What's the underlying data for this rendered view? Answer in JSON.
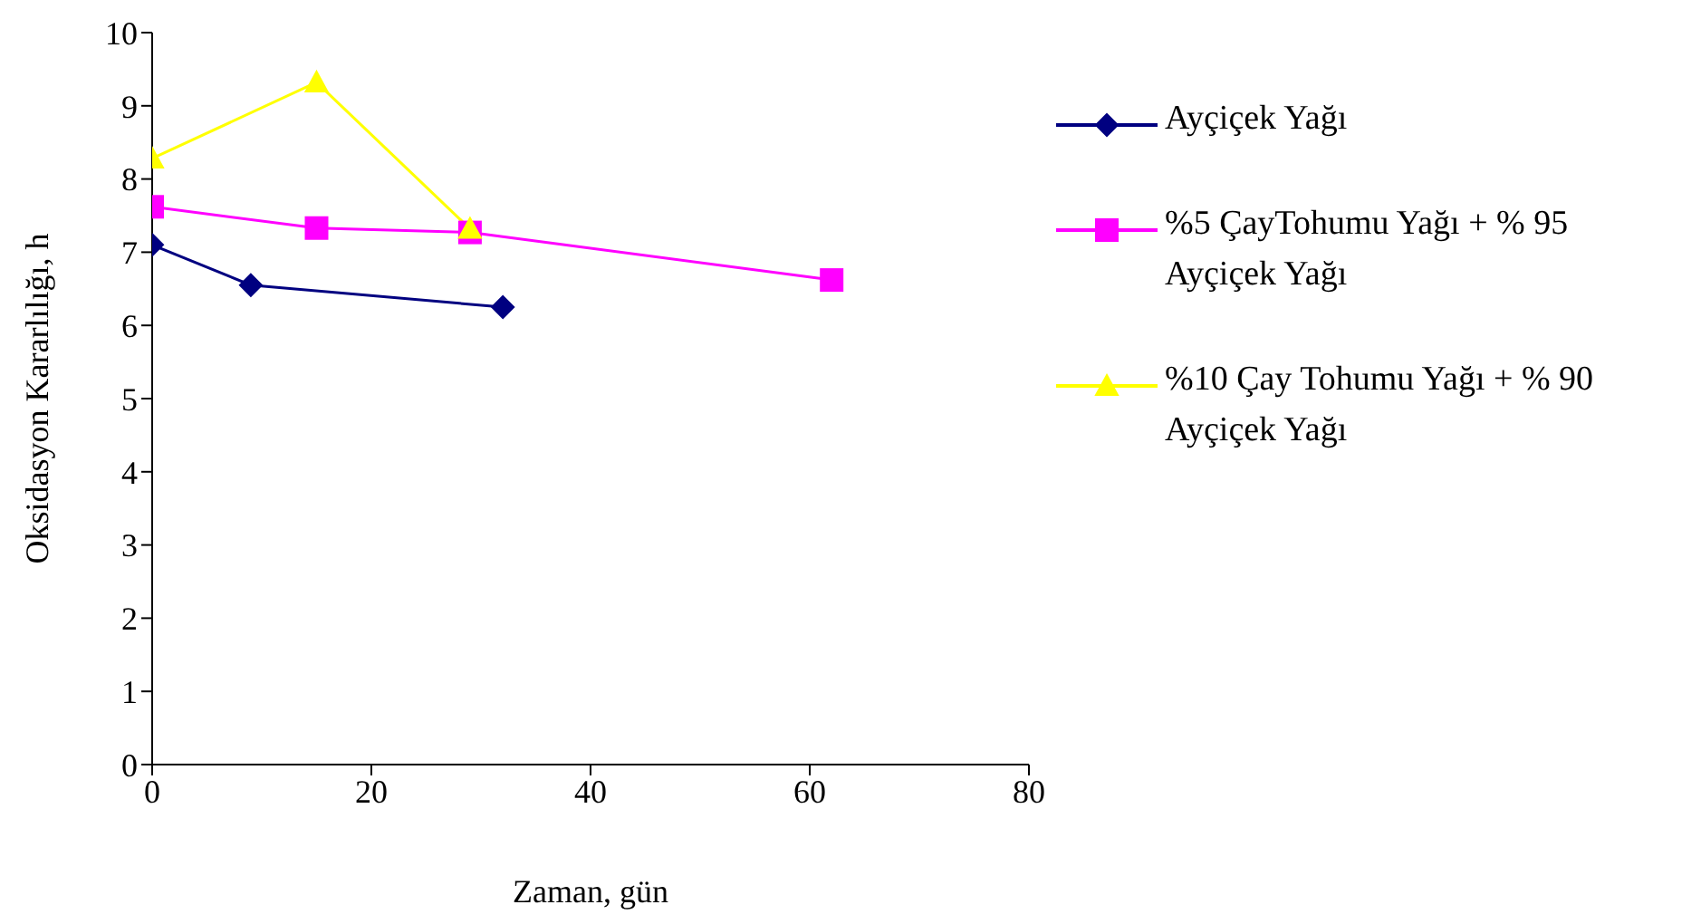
{
  "chart_data": {
    "type": "line",
    "xlabel": "Zaman, gün",
    "ylabel": "Oksidasyon Kararlılığı, h",
    "xlim": [
      0,
      80
    ],
    "xticks": [
      0,
      20,
      40,
      60,
      80
    ],
    "ylim": [
      0,
      10
    ],
    "yticks": [
      0,
      1,
      2,
      3,
      4,
      5,
      6,
      7,
      8,
      9,
      10
    ],
    "grid": false,
    "legend": "right",
    "series": [
      {
        "name": "Ayçiçek Yağı",
        "color": "#000080",
        "marker": "diamond",
        "x": [
          0,
          9,
          32
        ],
        "values": [
          7.1,
          6.55,
          6.25
        ]
      },
      {
        "name": "%5 ÇayTohumu Yağı + % 95 Ayçiçek Yağı",
        "color": "#ff00ff",
        "marker": "square",
        "x": [
          0,
          15,
          29,
          62
        ],
        "values": [
          7.62,
          7.33,
          7.27,
          6.62
        ]
      },
      {
        "name": "%10 Çay Tohumu Yağı + % 90 Ayçiçek Yağı",
        "color": "#ffff00",
        "marker": "triangle",
        "x": [
          0,
          15,
          29
        ],
        "values": [
          8.28,
          9.32,
          7.32
        ]
      }
    ]
  }
}
